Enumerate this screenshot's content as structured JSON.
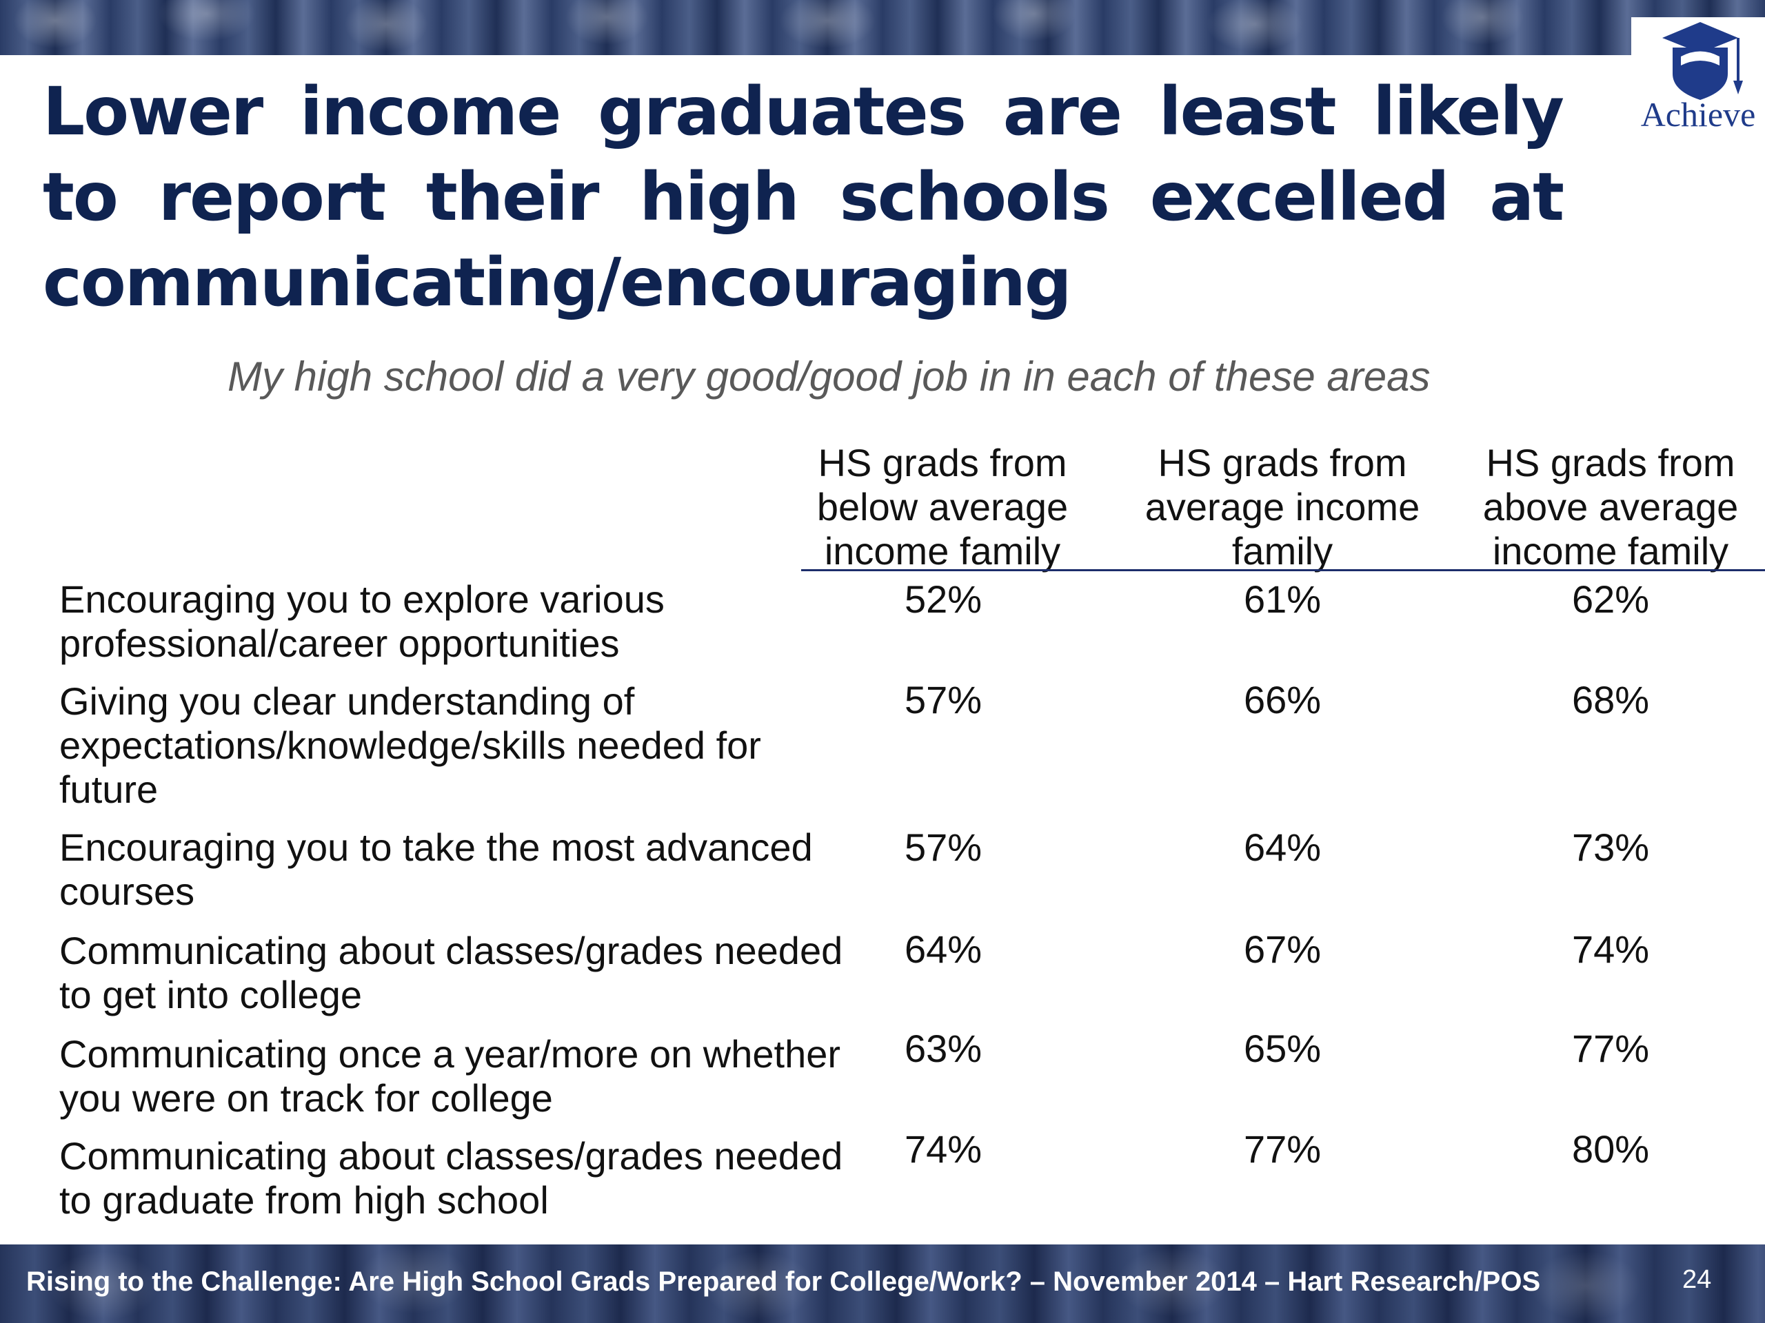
{
  "logo": {
    "text": "Achieve"
  },
  "title": "Lower income graduates are least likely to report their high schools excelled at communicating/encouraging",
  "subtitle": "My high school did a very good/good job in in each of these areas",
  "columns": [
    {
      "label": "HS grads from below average income family"
    },
    {
      "label": "HS grads from average income family"
    },
    {
      "label": "HS grads from above average income family"
    }
  ],
  "rows": [
    {
      "label": "Encouraging you to explore various professional/career opportunities",
      "values": [
        "52%",
        "61%",
        "62%"
      ]
    },
    {
      "label": "Giving you clear understanding of expectations/knowledge/skills needed for future",
      "values": [
        "57%",
        "66%",
        "68%"
      ]
    },
    {
      "label": "Encouraging you to take the most advanced courses",
      "values": [
        "57%",
        "64%",
        "73%"
      ]
    },
    {
      "label": "Communicating about classes/grades needed to get into college",
      "values": [
        "64%",
        "67%",
        "74%"
      ]
    },
    {
      "label": "Communicating once a year/more on whether you were on track for college",
      "values": [
        "63%",
        "65%",
        "77%"
      ]
    },
    {
      "label": "Communicating about classes/grades needed to graduate from high school",
      "values": [
        "74%",
        "77%",
        "80%"
      ]
    }
  ],
  "footer": {
    "text": "Rising to the Challenge:  Are High School Grads Prepared for College/Work? – November 2014 – Hart Research/POS",
    "page": "24"
  },
  "colors": {
    "title": "#0f2350",
    "rule": "#1c2d6b",
    "logo": "#1f3b8a"
  }
}
